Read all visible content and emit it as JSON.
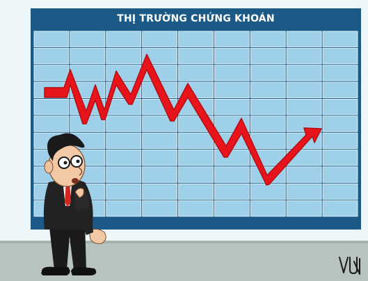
{
  "board": {
    "title": "THỊ TRƯỜNG CHỨNG KHOÁN"
  },
  "colors": {
    "frame": "#1b5a86",
    "grid_cell": "#9fd0ea",
    "grid_line": "#d9eef9",
    "arrow": "#e8141b",
    "floor": "#b7c3bf",
    "wall": "#eef6fa"
  },
  "signature": {
    "text": "VUN"
  }
}
